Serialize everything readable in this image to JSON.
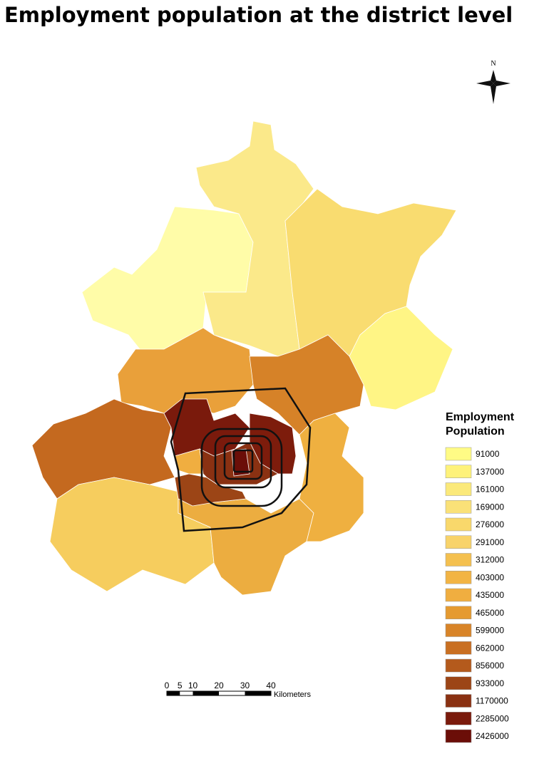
{
  "title": "Employment population at the district level",
  "north_label": "N",
  "legend": {
    "title": "Employment Population",
    "items": [
      {
        "label": 91000,
        "color": "#fffb85"
      },
      {
        "label": 137000,
        "color": "#fef27a"
      },
      {
        "label": 161000,
        "color": "#fbe97a"
      },
      {
        "label": 169000,
        "color": "#fae178"
      },
      {
        "label": 276000,
        "color": "#f9d86b"
      },
      {
        "label": 291000,
        "color": "#f8d36a"
      },
      {
        "label": 312000,
        "color": "#f4c04f"
      },
      {
        "label": 403000,
        "color": "#f2b444"
      },
      {
        "label": 435000,
        "color": "#f0ae40"
      },
      {
        "label": 465000,
        "color": "#e59a30"
      },
      {
        "label": 599000,
        "color": "#d88428"
      },
      {
        "label": 662000,
        "color": "#c96f22"
      },
      {
        "label": 856000,
        "color": "#b45a1c"
      },
      {
        "label": 933000,
        "color": "#9c4516"
      },
      {
        "label": 1170000,
        "color": "#8a3112"
      },
      {
        "label": 2285000,
        "color": "#7a1a0c"
      },
      {
        "label": 2426000,
        "color": "#6b0e08"
      }
    ]
  },
  "scale_bar": {
    "ticks": [
      0,
      5,
      10,
      20,
      30,
      40
    ],
    "unit": "Kilometers"
  }
}
